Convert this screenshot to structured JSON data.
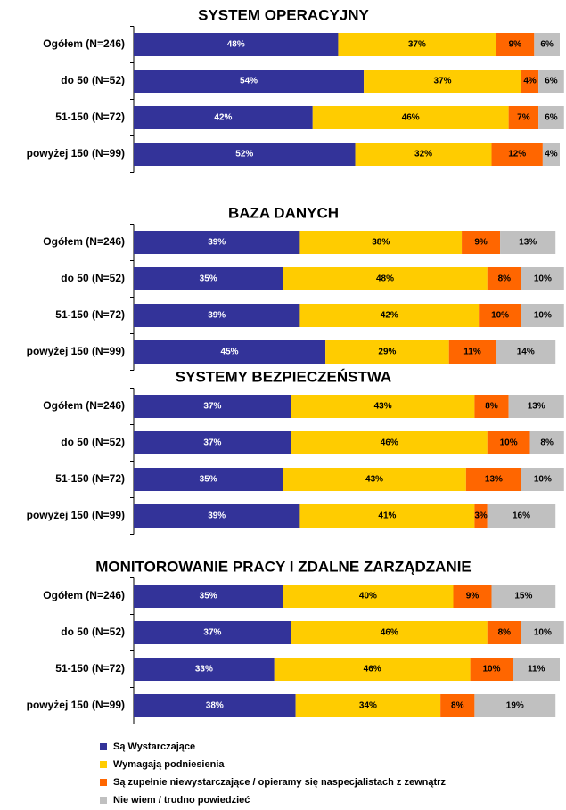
{
  "chart_data": [
    {
      "type": "bar",
      "title": "SYSTEM OPERACYJNY",
      "xlim": [
        0,
        100
      ],
      "categories": [
        "Ogółem (N=246)",
        "do 50 (N=52)",
        "51-150 (N=72)",
        "powyżej 150 (N=99)"
      ],
      "series": [
        {
          "name": "Są Wystarczające",
          "color": "#333399",
          "values": [
            48,
            54,
            42,
            52
          ],
          "value_labels": [
            "48%",
            "54%",
            "42%",
            "52%"
          ]
        },
        {
          "name": "Wymagają podniesienia",
          "color": "#FFCC00",
          "values": [
            37,
            37,
            46,
            32
          ],
          "value_labels": [
            "37%",
            "37%",
            "46%",
            "32%"
          ]
        },
        {
          "name": "Są zupełnie niewystarczające / opieramy się naspecjalistach z zewnątrz",
          "color": "#FF6600",
          "values": [
            9,
            4,
            7,
            12
          ],
          "value_labels": [
            "9%",
            "4%",
            "7%",
            "12%"
          ]
        },
        {
          "name": "Nie wiem / trudno powiedzieć",
          "color": "#C0C0C0",
          "values": [
            6,
            6,
            6,
            4
          ],
          "value_labels": [
            "6%",
            "6%",
            "6%",
            "4%"
          ]
        }
      ]
    },
    {
      "type": "bar",
      "title": "BAZA DANYCH",
      "xlim": [
        0,
        100
      ],
      "categories": [
        "Ogółem (N=246)",
        "do 50 (N=52)",
        "51-150 (N=72)",
        "powyżej 150 (N=99)"
      ],
      "series": [
        {
          "color": "#333399",
          "values": [
            39,
            35,
            39,
            45
          ],
          "value_labels": [
            "39%",
            "35%",
            "39%",
            "45%"
          ]
        },
        {
          "color": "#FFCC00",
          "values": [
            38,
            48,
            42,
            29
          ],
          "value_labels": [
            "38%",
            "48%",
            "42%",
            "29%"
          ]
        },
        {
          "color": "#FF6600",
          "values": [
            9,
            8,
            10,
            11
          ],
          "value_labels": [
            "9%",
            "8%",
            "10%",
            "11%"
          ]
        },
        {
          "color": "#C0C0C0",
          "values": [
            13,
            10,
            10,
            14
          ],
          "value_labels": [
            "13%",
            "10%",
            "10%",
            "14%"
          ]
        }
      ]
    },
    {
      "type": "bar",
      "title": "SYSTEMY BEZPIECZEŃSTWA",
      "xlim": [
        0,
        100
      ],
      "categories": [
        "Ogółem (N=246)",
        "do 50 (N=52)",
        "51-150 (N=72)",
        "powyżej 150 (N=99)"
      ],
      "series": [
        {
          "color": "#333399",
          "values": [
            37,
            37,
            35,
            39
          ],
          "value_labels": [
            "37%",
            "37%",
            "35%",
            "39%"
          ]
        },
        {
          "color": "#FFCC00",
          "values": [
            43,
            46,
            43,
            41
          ],
          "value_labels": [
            "43%",
            "46%",
            "43%",
            "41%"
          ]
        },
        {
          "color": "#FF6600",
          "values": [
            8,
            10,
            13,
            3
          ],
          "value_labels": [
            "8%",
            "10%",
            "13%",
            "3%"
          ]
        },
        {
          "color": "#C0C0C0",
          "values": [
            13,
            8,
            10,
            16
          ],
          "value_labels": [
            "13%",
            "8%",
            "10%",
            "16%"
          ]
        }
      ]
    },
    {
      "type": "bar",
      "title": "MONITOROWANIE PRACY I ZDALNE ZARZĄDZANIE",
      "xlim": [
        0,
        100
      ],
      "categories": [
        "Ogółem (N=246)",
        "do 50 (N=52)",
        "51-150 (N=72)",
        "powyżej 150 (N=99)"
      ],
      "series": [
        {
          "color": "#333399",
          "values": [
            35,
            37,
            33,
            38
          ],
          "value_labels": [
            "35%",
            "37%",
            "33%",
            "38%"
          ]
        },
        {
          "color": "#FFCC00",
          "values": [
            40,
            46,
            46,
            34
          ],
          "value_labels": [
            "40%",
            "46%",
            "46%",
            "34%"
          ]
        },
        {
          "color": "#FF6600",
          "values": [
            9,
            8,
            10,
            8
          ],
          "value_labels": [
            "9%",
            "8%",
            "10%",
            "8%"
          ]
        },
        {
          "color": "#C0C0C0",
          "values": [
            15,
            10,
            11,
            19
          ],
          "value_labels": [
            "15%",
            "10%",
            "11%",
            "19%"
          ]
        }
      ]
    }
  ]
}
